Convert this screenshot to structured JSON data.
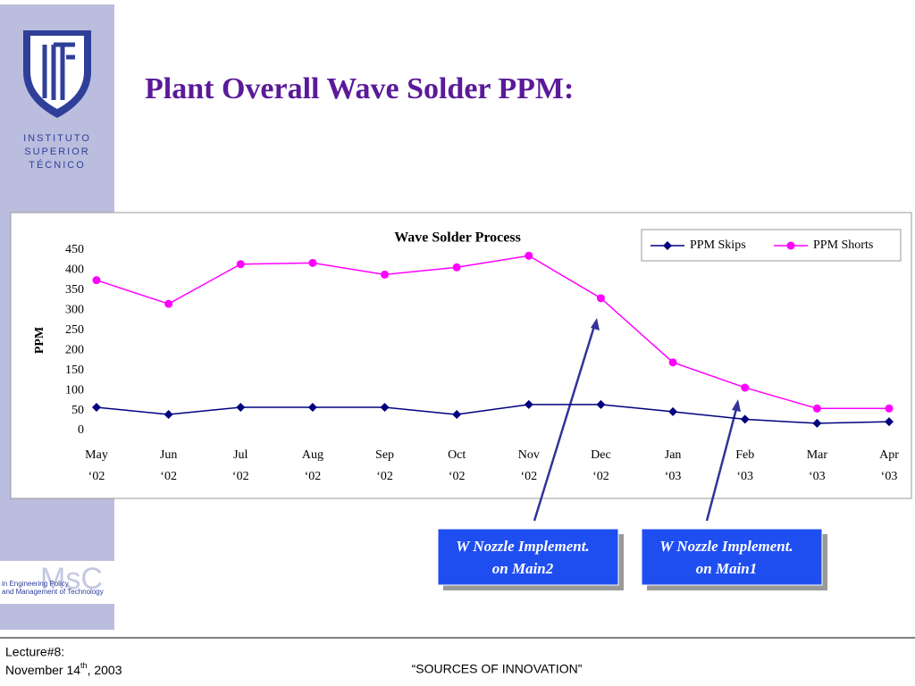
{
  "slide": {
    "title": "Plant Overall Wave Solder PPM:",
    "logo": {
      "lines": [
        "INSTITUTO",
        "SUPERIOR",
        "TÉCNICO"
      ]
    },
    "msc": {
      "mark": "MsC",
      "lines": [
        "in Engineering Policy",
        "and Management of Technology"
      ]
    },
    "footer": {
      "lecture": "Lecture#8:",
      "date": [
        "November 14",
        "th",
        ", 2003"
      ],
      "center": "“SOURCES OF INNOVATION”"
    }
  },
  "chart_data": {
    "type": "line",
    "title": "Wave Solder Process",
    "ylabel": "PPM",
    "categories": [
      [
        "May",
        "‘02"
      ],
      [
        "Jun",
        "‘02"
      ],
      [
        "Jul",
        "‘02"
      ],
      [
        "Aug",
        "‘02"
      ],
      [
        "Sep",
        "‘02"
      ],
      [
        "Oct",
        "‘02"
      ],
      [
        "Nov",
        "‘02"
      ],
      [
        "Dec",
        "‘02"
      ],
      [
        "Jan",
        "‘03"
      ],
      [
        "Feb",
        "‘03"
      ],
      [
        "Mar",
        "‘03"
      ],
      [
        "Apr",
        "‘03"
      ]
    ],
    "series": [
      {
        "name": "PPM Skips",
        "color": "#000080",
        "marker": "diamond",
        "values": [
          58,
          40,
          58,
          58,
          58,
          40,
          65,
          65,
          47,
          28,
          18,
          22
        ]
      },
      {
        "name": "PPM Shorts",
        "color": "#ff00ff",
        "marker": "circle",
        "values": [
          375,
          316,
          415,
          418,
          389,
          407,
          436,
          330,
          170,
          107,
          55,
          55
        ]
      }
    ],
    "ylim": [
      0,
      450
    ],
    "yticks": [
      0,
      50,
      100,
      150,
      200,
      250,
      300,
      350,
      400,
      450
    ],
    "grid": false,
    "legend": "top-right",
    "annotations": [
      {
        "lines": [
          "W Nozzle Implement.",
          "on Main2"
        ]
      },
      {
        "lines": [
          "W Nozzle Implement.",
          "on Main1"
        ]
      }
    ]
  }
}
